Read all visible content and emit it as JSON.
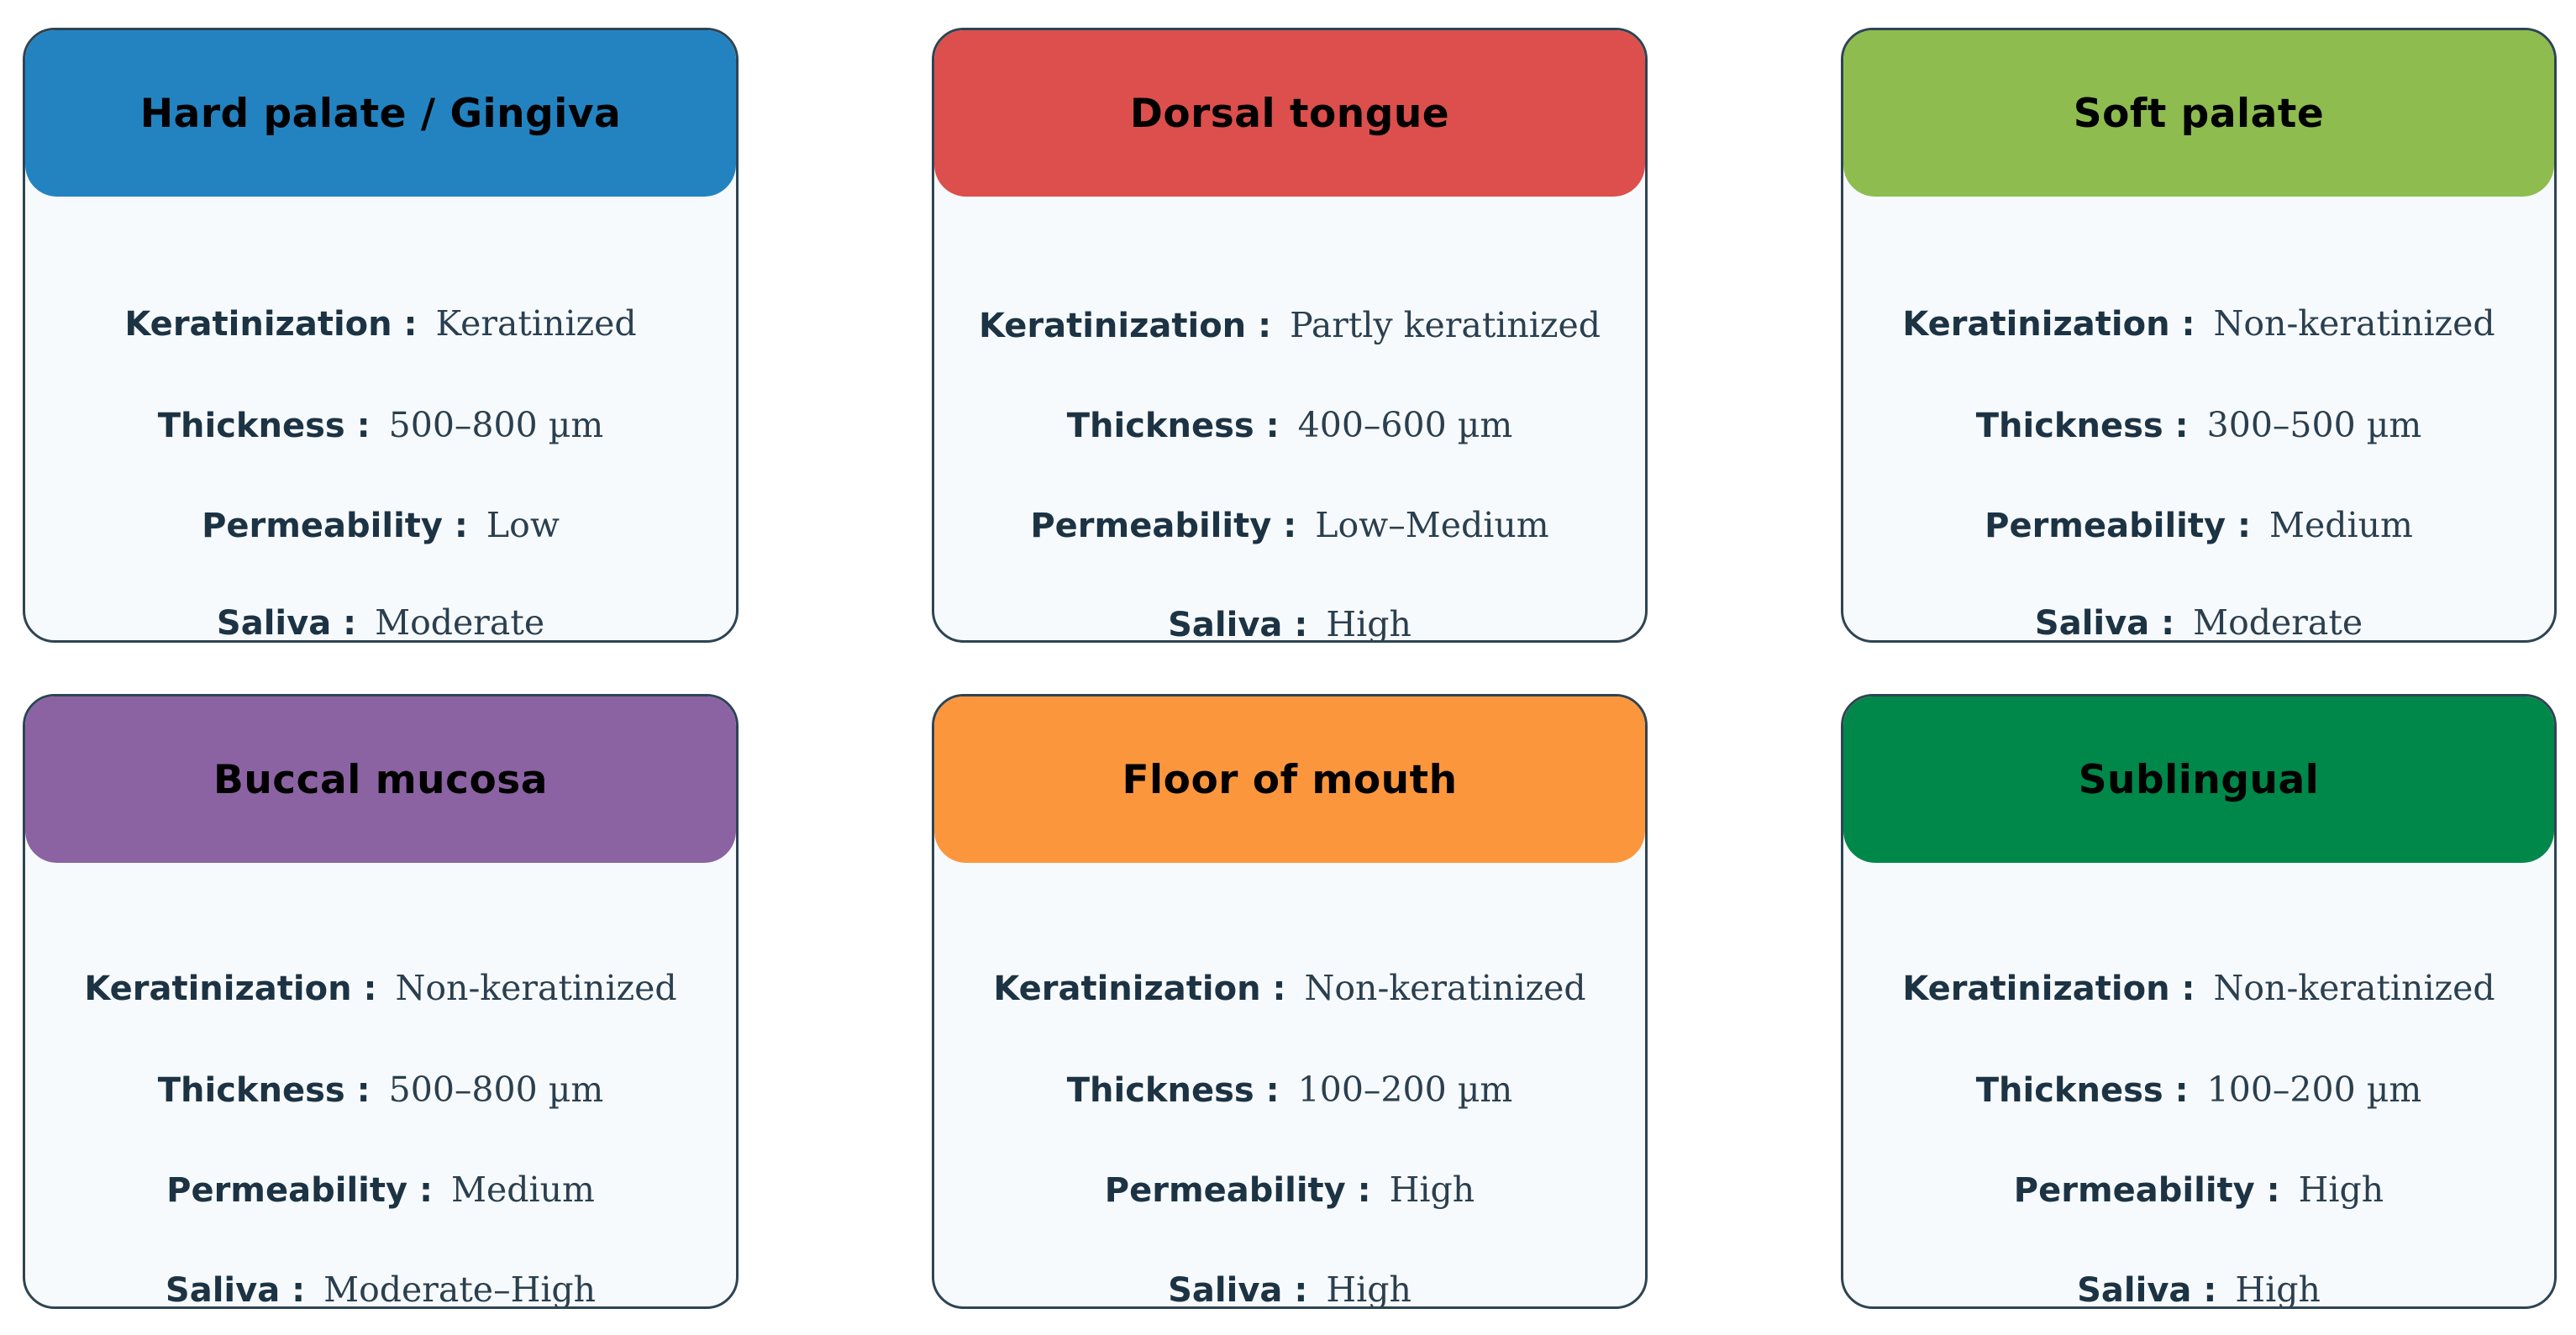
{
  "cards": [
    {
      "title": "Hard palate / Gingiva",
      "color": "#2383c1",
      "fields": [
        {
          "label": "Keratinization :",
          "value": "Keratinized"
        },
        {
          "label": "Thickness :",
          "value": "500–800 µm"
        },
        {
          "label": "Permeability :",
          "value": "Low"
        },
        {
          "label": "Saliva :",
          "value": "Moderate"
        }
      ]
    },
    {
      "title": "Dorsal tongue",
      "color": "#dc4f4c",
      "fields": [
        {
          "label": "Keratinization :",
          "value": "Partly keratinized"
        },
        {
          "label": "Thickness :",
          "value": "400–600 µm"
        },
        {
          "label": "Permeability :",
          "value": "Low–Medium"
        },
        {
          "label": "Saliva :",
          "value": "High"
        }
      ]
    },
    {
      "title": "Soft palate",
      "color": "#8ebc4f",
      "fields": [
        {
          "label": "Keratinization :",
          "value": "Non-keratinized"
        },
        {
          "label": "Thickness :",
          "value": "300–500 µm"
        },
        {
          "label": "Permeability :",
          "value": "Medium"
        },
        {
          "label": "Saliva :",
          "value": "Moderate"
        }
      ]
    },
    {
      "title": "Buccal mucosa",
      "color": "#8b63a3",
      "fields": [
        {
          "label": "Keratinization :",
          "value": "Non-keratinized"
        },
        {
          "label": "Thickness :",
          "value": "500–800 µm"
        },
        {
          "label": "Permeability :",
          "value": "Medium"
        },
        {
          "label": "Saliva :",
          "value": "Moderate–High"
        }
      ]
    },
    {
      "title": "Floor of mouth",
      "color": "#fc963d",
      "fields": [
        {
          "label": "Keratinization :",
          "value": "Non-keratinized"
        },
        {
          "label": "Thickness :",
          "value": "100–200 µm"
        },
        {
          "label": "Permeability :",
          "value": "High"
        },
        {
          "label": "Saliva :",
          "value": "High"
        }
      ]
    },
    {
      "title": "Sublingual",
      "color": "#00874a",
      "fields": [
        {
          "label": "Keratinization :",
          "value": "Non-keratinized"
        },
        {
          "label": "Thickness :",
          "value": "100–200 µm"
        },
        {
          "label": "Permeability :",
          "value": "High"
        },
        {
          "label": "Saliva :",
          "value": "High"
        }
      ]
    }
  ]
}
